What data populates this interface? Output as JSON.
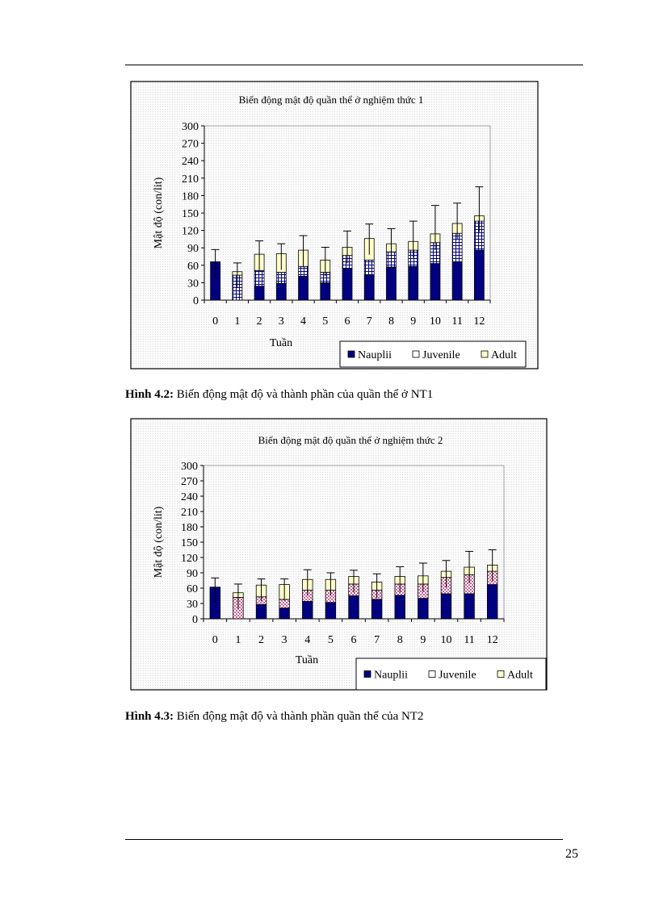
{
  "page_number": "25",
  "colors": {
    "nauplii": "#000080",
    "juvenile": "#ffffff",
    "adult": "#ffffcc",
    "juvenile_pattern_chart1": "#000080",
    "juvenile_pattern_chart2": "#cc6699"
  },
  "figures": [
    {
      "caption_label": "Hình 4.2:",
      "caption_text": " Biến động mật độ và thành phần của quần thể ở NT1"
    },
    {
      "caption_label": "Hình 4.3:",
      "caption_text": " Biến động mật độ và thành phần quần thể của NT2"
    }
  ],
  "chart_data": [
    {
      "type": "bar",
      "stacked": true,
      "error_bars": true,
      "title": "Biến động mật độ quần thể ở nghiệm thức 1",
      "xlabel": "Tuần",
      "ylabel": "Mật độ (con/lit)",
      "ylim": [
        0,
        300
      ],
      "yticks": [
        "0",
        "30",
        "60",
        "90",
        "120",
        "150",
        "180",
        "210",
        "240",
        "270",
        "300"
      ],
      "categories": [
        "0",
        "1",
        "2",
        "3",
        "4",
        "5",
        "6",
        "7",
        "8",
        "9",
        "10",
        "11",
        "12"
      ],
      "legend_position": "bottom-right",
      "series": [
        {
          "name": "Nauplii",
          "values": [
            66,
            0,
            24,
            29,
            41,
            30,
            55,
            43,
            57,
            58,
            63,
            66,
            86
          ]
        },
        {
          "name": "Juvenile",
          "values": [
            0,
            43,
            27,
            19,
            17,
            18,
            22,
            26,
            26,
            28,
            36,
            49,
            50
          ]
        },
        {
          "name": "Adult",
          "values": [
            0,
            6,
            28,
            32,
            28,
            21,
            14,
            37,
            14,
            15,
            15,
            17,
            9
          ]
        }
      ],
      "error_upper": [
        21,
        15,
        23,
        17,
        25,
        22,
        28,
        25,
        26,
        35,
        49,
        35,
        50
      ]
    },
    {
      "type": "bar",
      "stacked": true,
      "error_bars": true,
      "title": "Biến động mật độ quần thể ở nghiệm thức 2",
      "xlabel": "Tuần",
      "ylabel": "Mật độ (con/lit)",
      "ylim": [
        0,
        300
      ],
      "yticks": [
        "0",
        "30",
        "60",
        "90",
        "120",
        "150",
        "180",
        "210",
        "240",
        "270",
        "300"
      ],
      "categories": [
        "0",
        "1",
        "2",
        "3",
        "4",
        "5",
        "6",
        "7",
        "8",
        "9",
        "10",
        "11",
        "12"
      ],
      "legend_position": "bottom-right",
      "series": [
        {
          "name": "Nauplii",
          "values": [
            62,
            0,
            28,
            21,
            34,
            32,
            45,
            38,
            46,
            40,
            49,
            49,
            67
          ]
        },
        {
          "name": "Juvenile",
          "values": [
            0,
            42,
            15,
            17,
            22,
            24,
            23,
            18,
            22,
            28,
            32,
            37,
            26
          ]
        },
        {
          "name": "Adult",
          "values": [
            0,
            9,
            23,
            29,
            21,
            21,
            15,
            16,
            15,
            16,
            12,
            15,
            12
          ]
        }
      ],
      "error_upper": [
        18,
        17,
        12,
        11,
        19,
        13,
        12,
        16,
        19,
        25,
        21,
        31,
        30
      ]
    }
  ]
}
